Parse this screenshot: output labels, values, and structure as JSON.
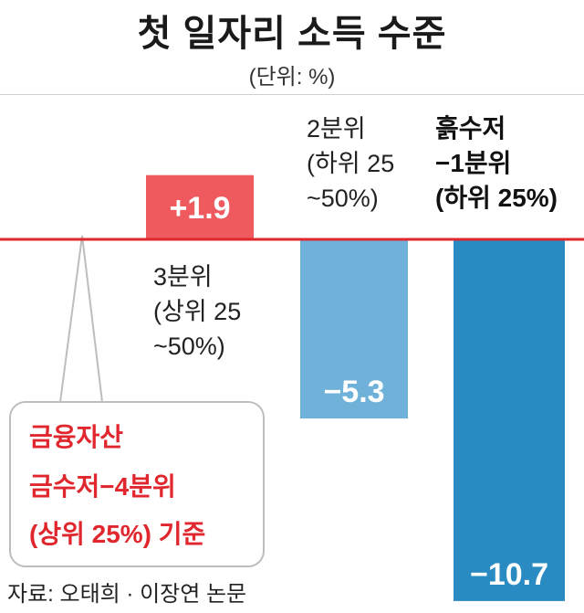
{
  "title": "첫 일자리 소득 수준",
  "unit": "(단위: %)",
  "chart_data": {
    "type": "bar",
    "categories": [
      [
        "3분위",
        "(상위 25",
        "~50%)"
      ],
      [
        "2분위",
        "(하위 25",
        "~50%)"
      ],
      [
        "흙수저",
        "−1분위",
        "(하위 25%)"
      ]
    ],
    "values": [
      1.9,
      -5.3,
      -10.7
    ],
    "value_labels": [
      "+1.9",
      "−5.3",
      "−10.7"
    ],
    "colors": [
      "#ee5a5d",
      "#6fb1d8",
      "#2a8bc2"
    ],
    "baseline_color": "#e0272e",
    "ylim": [
      -12,
      3
    ]
  },
  "callout": {
    "line1": "금융자산",
    "line2": "금수저−4분위",
    "line3": "(상위 25%) 기준"
  },
  "source": "자료: 오태희 · 이장연 논문"
}
